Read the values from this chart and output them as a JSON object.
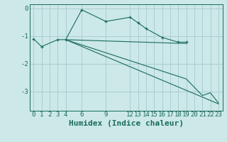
{
  "bg_color": "#cce8e8",
  "line_color": "#1a6b5a",
  "grid_color": "#aacfcf",
  "xlabel": "Humidex (Indice chaleur)",
  "xlabel_fontsize": 8,
  "tick_fontsize": 6.5,
  "xlim": [
    -0.5,
    23.5
  ],
  "ylim": [
    -3.7,
    0.15
  ],
  "yticks": [
    0,
    -1,
    -2,
    -3
  ],
  "xticks": [
    0,
    1,
    2,
    3,
    4,
    6,
    9,
    12,
    13,
    14,
    15,
    16,
    17,
    18,
    19,
    20,
    21,
    22,
    23
  ],
  "series": [
    {
      "x": [
        0,
        1,
        3,
        4,
        6,
        9,
        12,
        13,
        14,
        16,
        18,
        19
      ],
      "y": [
        -1.1,
        -1.38,
        -1.13,
        -1.13,
        -0.05,
        -0.47,
        -0.32,
        -0.52,
        -0.73,
        -1.05,
        -1.22,
        -1.22
      ],
      "marker": "+"
    },
    {
      "x": [
        4,
        19
      ],
      "y": [
        -1.13,
        -1.27
      ],
      "marker": null
    },
    {
      "x": [
        4,
        23
      ],
      "y": [
        -1.13,
        -3.45
      ],
      "marker": null
    },
    {
      "x": [
        4,
        19,
        21,
        22,
        23
      ],
      "y": [
        -1.13,
        -2.55,
        -3.15,
        -3.05,
        -3.42
      ],
      "marker": null
    }
  ]
}
